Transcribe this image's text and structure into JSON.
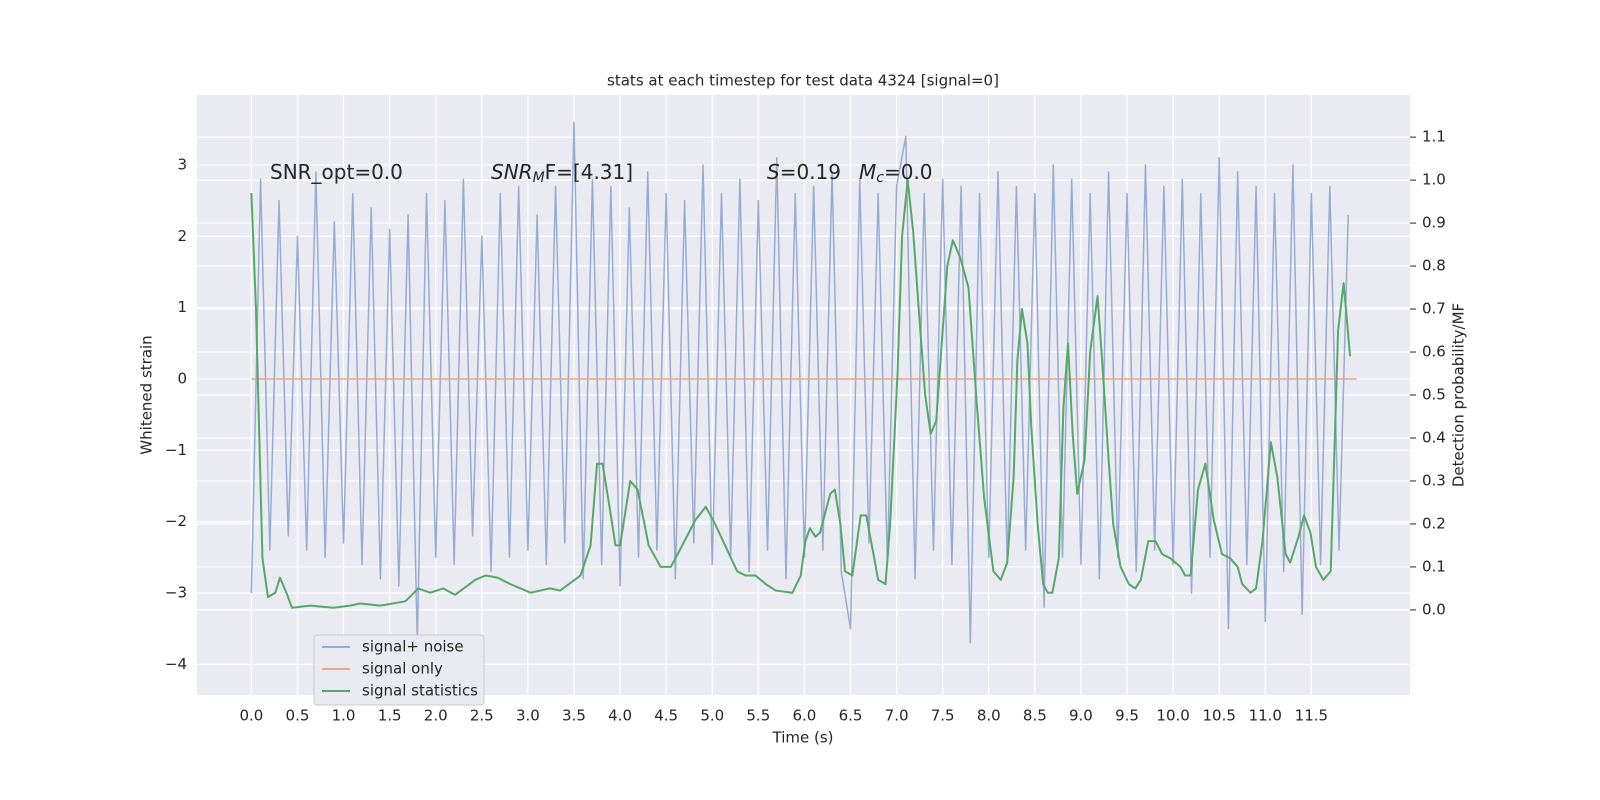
{
  "chart_data": {
    "type": "line",
    "title": "stats at each timestep for test data 4324 [signal=0]",
    "xlabel": "Time (s)",
    "ylabel": "Whitened strain",
    "y2label": "Detection probability/MF",
    "xlim": [
      -0.59,
      12.57
    ],
    "ylim": [
      -4.43,
      3.98
    ],
    "y2lim": [
      -0.198,
      1.198
    ],
    "xticks": [
      {
        "value": 0,
        "label": "0.0"
      },
      0.5,
      {
        "value": 1,
        "label": "1.0"
      },
      1.5,
      {
        "value": 2,
        "label": "2.0"
      },
      2.5,
      {
        "value": 3,
        "label": "3.0"
      },
      3.5,
      {
        "value": 4,
        "label": "4.0"
      },
      4.5,
      {
        "value": 5,
        "label": "5.0"
      },
      5.5,
      {
        "value": 6,
        "label": "6.0"
      },
      6.5,
      {
        "value": 7,
        "label": "7.0"
      },
      7.5,
      {
        "value": 8,
        "label": "8.0"
      },
      8.5,
      {
        "value": 9,
        "label": "9.0"
      },
      9.5,
      {
        "value": 10,
        "label": "10.0"
      },
      10.5,
      {
        "value": 11,
        "label": "11.0"
      },
      11.5
    ],
    "yticks": [
      {
        "value": -4,
        "label": "−4"
      },
      {
        "value": -3,
        "label": "−3"
      },
      {
        "value": -2,
        "label": "−2"
      },
      {
        "value": -1,
        "label": "−1"
      },
      0,
      1,
      2,
      3
    ],
    "y2ticks": [
      {
        "value": 0,
        "label": "0.0"
      },
      0.1,
      0.2,
      0.3,
      0.4,
      0.5,
      0.6,
      0.7,
      0.8,
      0.9,
      {
        "value": 1,
        "label": "1.0"
      },
      1.1
    ],
    "grid": true,
    "legend": "lower left",
    "annotations": [
      [
        {
          "text": "SNR_opt=0.0"
        }
      ],
      [
        {
          "text": "SNR",
          "style": "italic"
        },
        {
          "text": "M",
          "style": "sub-italic"
        },
        {
          "text": "F=[4.31]"
        }
      ],
      [
        {
          "text": "S",
          "style": "italic"
        },
        {
          "text": "=0.19"
        }
      ],
      [
        {
          "text": "M",
          "style": "italic"
        },
        {
          "text": "c",
          "style": "sub-italic"
        },
        {
          "text": "=0.0"
        }
      ]
    ],
    "series": [
      {
        "name": "signal+ noise",
        "color": "#9aabd2",
        "x": [
          0,
          0.1,
          0.2,
          0.3,
          0.4,
          0.5,
          0.6,
          0.7,
          0.8,
          0.9,
          1,
          1.1,
          1.2,
          1.3,
          1.4,
          1.5,
          1.6,
          1.7,
          1.8,
          1.9,
          2,
          2.1,
          2.2,
          2.3,
          2.4,
          2.5,
          2.6,
          2.7,
          2.8,
          2.9,
          3,
          3.1,
          3.2,
          3.3,
          3.4,
          3.5,
          3.6,
          3.7,
          3.8,
          3.9,
          4,
          4.1,
          4.2,
          4.3,
          4.4,
          4.5,
          4.6,
          4.7,
          4.8,
          4.9,
          5,
          5.1,
          5.2,
          5.3,
          5.4,
          5.5,
          5.6,
          5.7,
          5.8,
          5.9,
          6,
          6.1,
          6.2,
          6.3,
          6.4,
          6.5,
          6.6,
          6.7,
          6.8,
          6.9,
          7,
          7.1,
          7.2,
          7.3,
          7.4,
          7.5,
          7.6,
          7.7,
          7.8,
          7.9,
          8,
          8.1,
          8.2,
          8.3,
          8.4,
          8.5,
          8.6,
          8.7,
          8.8,
          8.9,
          9,
          9.1,
          9.2,
          9.3,
          9.4,
          9.5,
          9.6,
          9.7,
          9.8,
          9.9,
          10,
          10.1,
          10.2,
          10.3,
          10.4,
          10.5,
          10.6,
          10.7,
          10.8,
          10.9,
          11,
          11.1,
          11.2,
          11.3,
          11.4,
          11.5,
          11.6,
          11.7,
          11.8,
          11.9
        ],
        "values": [
          -3.0,
          2.8,
          -2.4,
          2.5,
          -2.2,
          2.0,
          -2.4,
          2.9,
          -2.5,
          2.2,
          -2.3,
          2.6,
          -2.6,
          2.4,
          -2.8,
          2.1,
          -2.9,
          2.3,
          -3.7,
          2.6,
          -2.5,
          2.5,
          -2.6,
          2.8,
          -2.2,
          2.0,
          -2.7,
          2.6,
          -2.5,
          2.7,
          -2.4,
          2.3,
          -2.6,
          2.7,
          -2.3,
          3.6,
          -2.8,
          2.8,
          -2.6,
          2.7,
          -2.9,
          2.4,
          -2.5,
          2.9,
          -2.4,
          2.6,
          -2.8,
          2.5,
          -2.3,
          3.0,
          -2.6,
          2.6,
          -2.5,
          2.8,
          -2.7,
          2.5,
          -2.4,
          3.1,
          -2.8,
          2.6,
          -2.5,
          2.7,
          -2.4,
          2.9,
          -2.7,
          -3.5,
          2.8,
          -2.3,
          2.6,
          -2.6,
          2.7,
          3.4,
          -2.8,
          2.6,
          -2.4,
          2.8,
          -2.6,
          2.7,
          -3.7,
          2.6,
          -2.5,
          2.9,
          -2.6,
          2.7,
          -2.4,
          2.6,
          -3.2,
          3.0,
          -2.5,
          2.8,
          -2.6,
          2.6,
          -2.8,
          2.9,
          -2.5,
          2.6,
          -2.7,
          3.0,
          -2.4,
          2.7,
          -2.6,
          2.8,
          -3.0,
          2.6,
          -2.5,
          3.1,
          -3.5,
          2.9,
          -2.6,
          2.7,
          -3.4,
          2.6,
          -2.7,
          3.0,
          -3.3,
          2.6,
          -2.6,
          2.7,
          -2.4,
          2.3
        ]
      },
      {
        "name": "signal only",
        "color": "#e7a98a",
        "x": [
          0,
          11.99
        ],
        "values": [
          0,
          0
        ]
      },
      {
        "name": "signal statistics",
        "color": "#55a868",
        "axis": "y2",
        "x": [
          0,
          0.05,
          0.12,
          0.18,
          0.26,
          0.31,
          0.38,
          0.44,
          0.64,
          0.89,
          1.07,
          1.18,
          1.4,
          1.67,
          1.81,
          1.94,
          2.08,
          2.21,
          2.43,
          2.54,
          2.67,
          2.81,
          3.03,
          3.24,
          3.35,
          3.57,
          3.68,
          3.75,
          3.81,
          3.9,
          3.95,
          4,
          4.11,
          4.19,
          4.31,
          4.44,
          4.55,
          4.65,
          4.82,
          4.93,
          5.03,
          5.14,
          5.27,
          5.36,
          5.47,
          5.58,
          5.69,
          5.87,
          5.96,
          6.01,
          6.06,
          6.12,
          6.17,
          6.28,
          6.33,
          6.39,
          6.44,
          6.52,
          6.61,
          6.67,
          6.74,
          6.8,
          6.88,
          6.93,
          7.01,
          7.06,
          7.12,
          7.18,
          7.24,
          7.31,
          7.37,
          7.43,
          7.55,
          7.61,
          7.69,
          7.78,
          7.87,
          7.95,
          8.05,
          8.13,
          8.2,
          8.27,
          8.31,
          8.36,
          8.42,
          8.46,
          8.53,
          8.59,
          8.64,
          8.69,
          8.76,
          8.81,
          8.86,
          8.91,
          8.96,
          9.04,
          9.1,
          9.18,
          9.23,
          9.3,
          9.35,
          9.43,
          9.52,
          9.59,
          9.65,
          9.73,
          9.81,
          9.88,
          9.97,
          10.08,
          10.13,
          10.19,
          10.27,
          10.35,
          10.44,
          10.53,
          10.62,
          10.7,
          10.75,
          10.84,
          10.9,
          10.97,
          11.06,
          11.13,
          11.22,
          11.27,
          11.36,
          11.42,
          11.49,
          11.55,
          11.63,
          11.71,
          11.79,
          11.85,
          11.92
        ],
        "values": [
          0.97,
          0.7,
          0.12,
          0.03,
          0.04,
          0.075,
          0.04,
          0.005,
          0.01,
          0.005,
          0.01,
          0.015,
          0.01,
          0.02,
          0.05,
          0.04,
          0.05,
          0.035,
          0.07,
          0.08,
          0.075,
          0.06,
          0.04,
          0.05,
          0.045,
          0.08,
          0.15,
          0.34,
          0.34,
          0.22,
          0.15,
          0.15,
          0.3,
          0.28,
          0.15,
          0.1,
          0.1,
          0.14,
          0.21,
          0.24,
          0.2,
          0.15,
          0.09,
          0.08,
          0.08,
          0.06,
          0.045,
          0.04,
          0.08,
          0.16,
          0.19,
          0.17,
          0.18,
          0.27,
          0.28,
          0.2,
          0.09,
          0.08,
          0.22,
          0.22,
          0.14,
          0.07,
          0.06,
          0.2,
          0.55,
          0.87,
          1.0,
          0.88,
          0.7,
          0.5,
          0.41,
          0.44,
          0.8,
          0.86,
          0.82,
          0.75,
          0.48,
          0.26,
          0.09,
          0.07,
          0.11,
          0.31,
          0.58,
          0.7,
          0.62,
          0.43,
          0.2,
          0.06,
          0.04,
          0.04,
          0.12,
          0.47,
          0.62,
          0.41,
          0.27,
          0.35,
          0.6,
          0.73,
          0.58,
          0.35,
          0.2,
          0.1,
          0.06,
          0.05,
          0.07,
          0.16,
          0.16,
          0.13,
          0.12,
          0.1,
          0.08,
          0.08,
          0.28,
          0.34,
          0.21,
          0.13,
          0.12,
          0.1,
          0.06,
          0.04,
          0.05,
          0.16,
          0.39,
          0.31,
          0.13,
          0.11,
          0.17,
          0.22,
          0.18,
          0.1,
          0.07,
          0.09,
          0.65,
          0.76,
          0.59
        ]
      }
    ]
  }
}
